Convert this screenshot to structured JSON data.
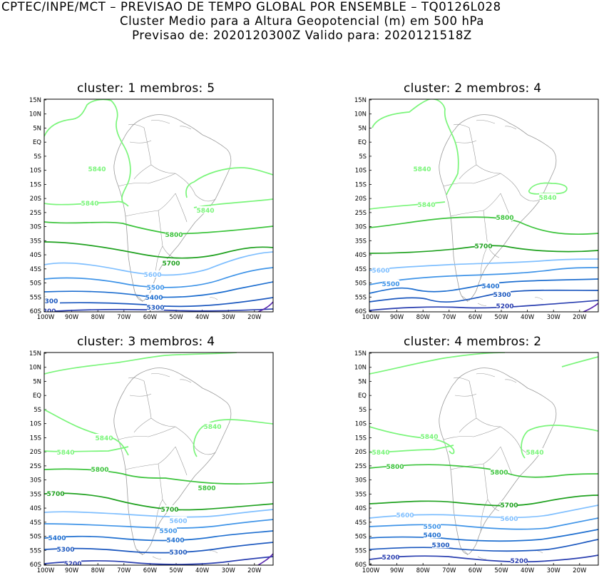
{
  "header": {
    "line1": "CPTEC/INPE/MCT – PREVISAO DE TEMPO GLOBAL POR ENSEMBLE – TQ0126L028",
    "line2": "Cluster Medio para a Altura Geopotencial (m) em 500 hPa",
    "line3": "Previsao de: 2020120300Z    Valido para: 2020121518Z"
  },
  "axes": {
    "lat_ticks": [
      "15N",
      "10N",
      "5N",
      "EQ",
      "5S",
      "10S",
      "15S",
      "20S",
      "25S",
      "30S",
      "35S",
      "40S",
      "45S",
      "50S",
      "55S",
      "60S"
    ],
    "lon_ticks": [
      "100W",
      "90W",
      "80W",
      "70W",
      "60W",
      "50W",
      "40W",
      "30W",
      "20W"
    ]
  },
  "colors": {
    "c5840": "#7af57a",
    "c5800": "#3dc43d",
    "c5700": "#1fa11f",
    "c5600": "#7fbfff",
    "c5500": "#3f94e8",
    "c5400": "#1f6fd0",
    "c5300": "#1c58bf",
    "c5200": "#2a3fb0",
    "c5100": "#5a2ab0",
    "coast": "#9a9a9a"
  },
  "panels": [
    {
      "title": "cluster: 1   membros: 5",
      "labels": [
        "5840",
        "5840",
        "5840",
        "5800",
        "5700",
        "5600",
        "5500",
        "5400",
        "5300",
        "300",
        "5200"
      ]
    },
    {
      "title": "cluster: 2   membros: 4",
      "labels": [
        "5840",
        "5840",
        "5840",
        "5800",
        "5700",
        "5600",
        "5500",
        "5400",
        "5300",
        "5200"
      ]
    },
    {
      "title": "cluster: 3   membros: 4",
      "labels": [
        "5840",
        "5840",
        "5840",
        "5800",
        "5800",
        "5700",
        "5700",
        "5600",
        "5500",
        "5400",
        "5400",
        "5300",
        "5300",
        "5200"
      ]
    },
    {
      "title": "cluster: 4   membros: 2",
      "labels": [
        "5840",
        "5840",
        "5840",
        "5800",
        "5800",
        "5700",
        "5600",
        "5600",
        "5500",
        "5400",
        "5300",
        "5200",
        "5200"
      ]
    }
  ]
}
